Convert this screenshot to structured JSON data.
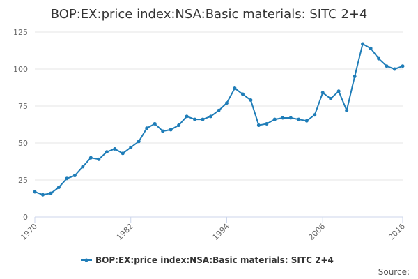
{
  "chart_data": {
    "type": "line",
    "title": "BOP:EX:price index:NSA:Basic materials: SITC 2+4",
    "xlabel": "",
    "ylabel": "",
    "x": [
      1970,
      1971,
      1972,
      1973,
      1974,
      1975,
      1976,
      1977,
      1978,
      1979,
      1980,
      1981,
      1982,
      1983,
      1984,
      1985,
      1986,
      1987,
      1988,
      1989,
      1990,
      1991,
      1992,
      1993,
      1994,
      1995,
      1996,
      1997,
      1998,
      1999,
      2000,
      2001,
      2002,
      2003,
      2004,
      2005,
      2006,
      2007,
      2008,
      2009,
      2010,
      2011,
      2012,
      2013,
      2014,
      2015,
      2016
    ],
    "series": [
      {
        "name": "BOP:EX:price index:NSA:Basic materials: SITC 2+4",
        "values": [
          17,
          15,
          16,
          20,
          26,
          28,
          34,
          40,
          39,
          44,
          46,
          43,
          47,
          51,
          60,
          63,
          58,
          59,
          62,
          68,
          66,
          66,
          68,
          72,
          77,
          87,
          83,
          79,
          62,
          63,
          66,
          67,
          67,
          66,
          65,
          69,
          84,
          80,
          85,
          72,
          95,
          117,
          114,
          107,
          102,
          100,
          102
        ]
      }
    ],
    "ylim": [
      0,
      125
    ],
    "xlim": [
      1970,
      2016
    ],
    "yticks": [
      "0",
      "25",
      "50",
      "75",
      "100",
      "125"
    ],
    "xticks": [
      "1970",
      "1982",
      "1994",
      "2006",
      "2016"
    ],
    "grid": true,
    "legend_position": "bottom-center",
    "line_color": "#1f7db8",
    "source_label": "Source:"
  }
}
